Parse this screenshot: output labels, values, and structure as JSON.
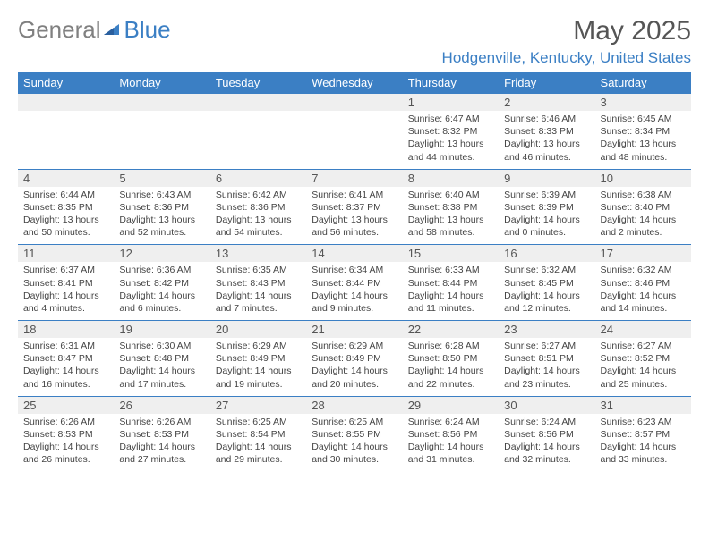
{
  "logo": {
    "part1": "General",
    "part2": "Blue"
  },
  "header": {
    "title": "May 2025",
    "location": "Hodgenville, Kentucky, United States"
  },
  "colors": {
    "accent": "#3b7fc4",
    "header_bg": "#3b7fc4",
    "daynum_bg": "#efefef",
    "text": "#333333"
  },
  "day_headers": [
    "Sunday",
    "Monday",
    "Tuesday",
    "Wednesday",
    "Thursday",
    "Friday",
    "Saturday"
  ],
  "weeks": [
    {
      "nums": [
        "",
        "",
        "",
        "",
        "1",
        "2",
        "3"
      ],
      "details": [
        "",
        "",
        "",
        "",
        "Sunrise: 6:47 AM\nSunset: 8:32 PM\nDaylight: 13 hours and 44 minutes.",
        "Sunrise: 6:46 AM\nSunset: 8:33 PM\nDaylight: 13 hours and 46 minutes.",
        "Sunrise: 6:45 AM\nSunset: 8:34 PM\nDaylight: 13 hours and 48 minutes."
      ]
    },
    {
      "nums": [
        "4",
        "5",
        "6",
        "7",
        "8",
        "9",
        "10"
      ],
      "details": [
        "Sunrise: 6:44 AM\nSunset: 8:35 PM\nDaylight: 13 hours and 50 minutes.",
        "Sunrise: 6:43 AM\nSunset: 8:36 PM\nDaylight: 13 hours and 52 minutes.",
        "Sunrise: 6:42 AM\nSunset: 8:36 PM\nDaylight: 13 hours and 54 minutes.",
        "Sunrise: 6:41 AM\nSunset: 8:37 PM\nDaylight: 13 hours and 56 minutes.",
        "Sunrise: 6:40 AM\nSunset: 8:38 PM\nDaylight: 13 hours and 58 minutes.",
        "Sunrise: 6:39 AM\nSunset: 8:39 PM\nDaylight: 14 hours and 0 minutes.",
        "Sunrise: 6:38 AM\nSunset: 8:40 PM\nDaylight: 14 hours and 2 minutes."
      ]
    },
    {
      "nums": [
        "11",
        "12",
        "13",
        "14",
        "15",
        "16",
        "17"
      ],
      "details": [
        "Sunrise: 6:37 AM\nSunset: 8:41 PM\nDaylight: 14 hours and 4 minutes.",
        "Sunrise: 6:36 AM\nSunset: 8:42 PM\nDaylight: 14 hours and 6 minutes.",
        "Sunrise: 6:35 AM\nSunset: 8:43 PM\nDaylight: 14 hours and 7 minutes.",
        "Sunrise: 6:34 AM\nSunset: 8:44 PM\nDaylight: 14 hours and 9 minutes.",
        "Sunrise: 6:33 AM\nSunset: 8:44 PM\nDaylight: 14 hours and 11 minutes.",
        "Sunrise: 6:32 AM\nSunset: 8:45 PM\nDaylight: 14 hours and 12 minutes.",
        "Sunrise: 6:32 AM\nSunset: 8:46 PM\nDaylight: 14 hours and 14 minutes."
      ]
    },
    {
      "nums": [
        "18",
        "19",
        "20",
        "21",
        "22",
        "23",
        "24"
      ],
      "details": [
        "Sunrise: 6:31 AM\nSunset: 8:47 PM\nDaylight: 14 hours and 16 minutes.",
        "Sunrise: 6:30 AM\nSunset: 8:48 PM\nDaylight: 14 hours and 17 minutes.",
        "Sunrise: 6:29 AM\nSunset: 8:49 PM\nDaylight: 14 hours and 19 minutes.",
        "Sunrise: 6:29 AM\nSunset: 8:49 PM\nDaylight: 14 hours and 20 minutes.",
        "Sunrise: 6:28 AM\nSunset: 8:50 PM\nDaylight: 14 hours and 22 minutes.",
        "Sunrise: 6:27 AM\nSunset: 8:51 PM\nDaylight: 14 hours and 23 minutes.",
        "Sunrise: 6:27 AM\nSunset: 8:52 PM\nDaylight: 14 hours and 25 minutes."
      ]
    },
    {
      "nums": [
        "25",
        "26",
        "27",
        "28",
        "29",
        "30",
        "31"
      ],
      "details": [
        "Sunrise: 6:26 AM\nSunset: 8:53 PM\nDaylight: 14 hours and 26 minutes.",
        "Sunrise: 6:26 AM\nSunset: 8:53 PM\nDaylight: 14 hours and 27 minutes.",
        "Sunrise: 6:25 AM\nSunset: 8:54 PM\nDaylight: 14 hours and 29 minutes.",
        "Sunrise: 6:25 AM\nSunset: 8:55 PM\nDaylight: 14 hours and 30 minutes.",
        "Sunrise: 6:24 AM\nSunset: 8:56 PM\nDaylight: 14 hours and 31 minutes.",
        "Sunrise: 6:24 AM\nSunset: 8:56 PM\nDaylight: 14 hours and 32 minutes.",
        "Sunrise: 6:23 AM\nSunset: 8:57 PM\nDaylight: 14 hours and 33 minutes."
      ]
    }
  ]
}
